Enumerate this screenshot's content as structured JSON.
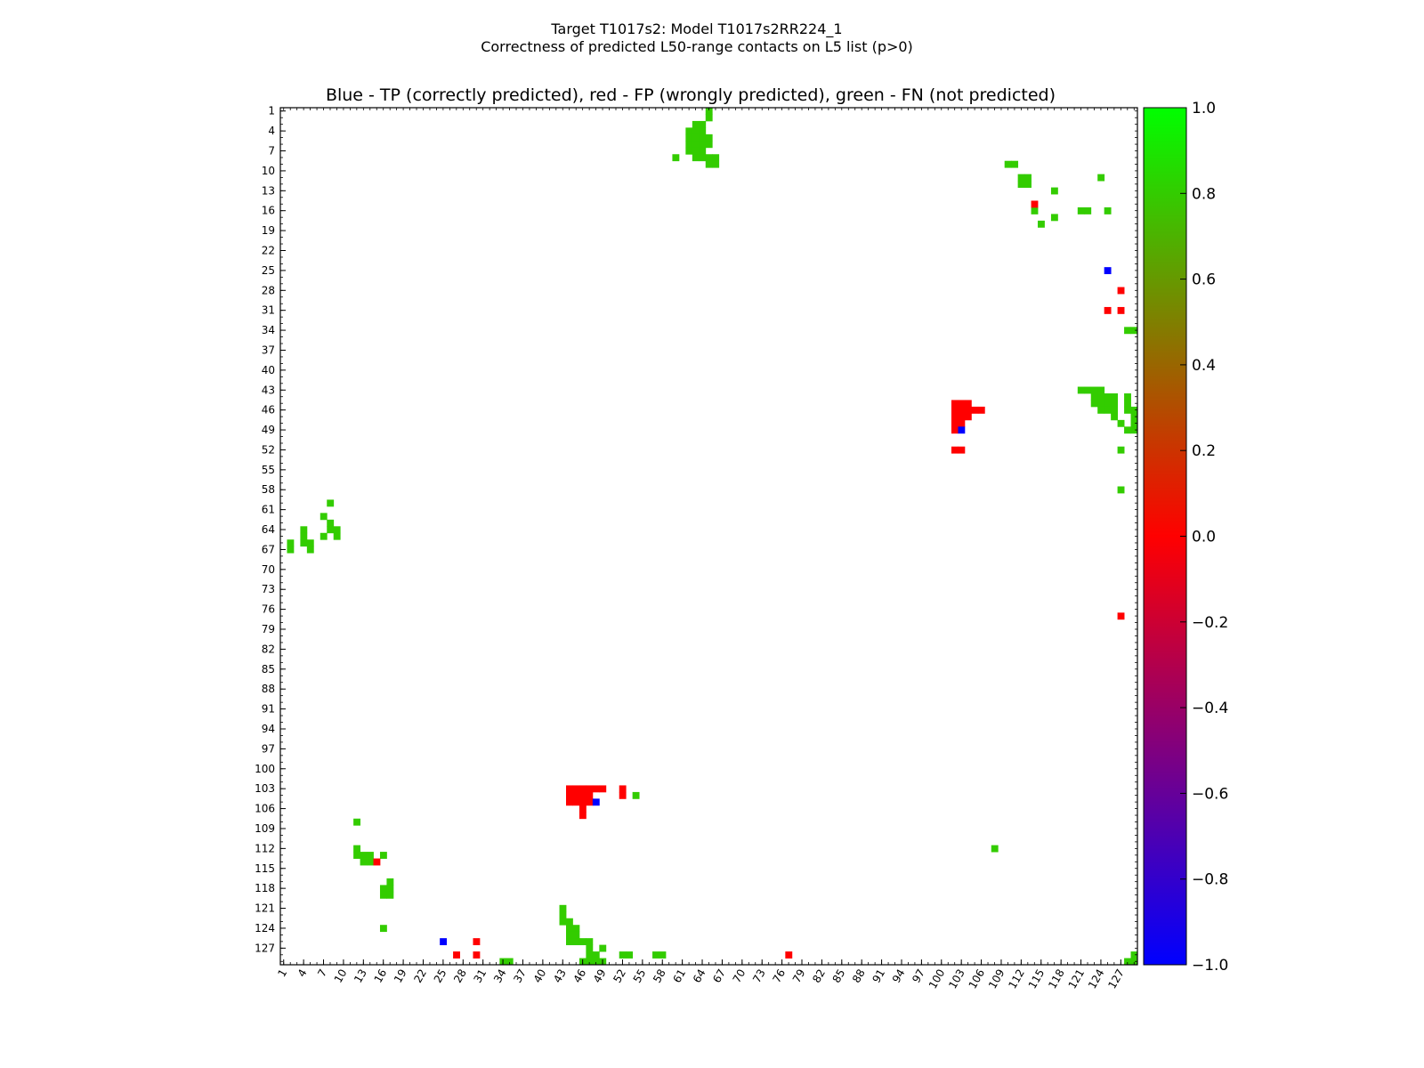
{
  "chart_data": {
    "type": "heatmap",
    "title_line1": "Target T1017s2: Model T1017s2RR224_1",
    "title_line2": "Correctness of predicted L50-range contacts on L5 list (p>0)",
    "subtitle": "Blue - TP (correctly predicted), red - FP (wrongly predicted), green - FN (not predicted)",
    "xlabel": "",
    "ylabel": "",
    "axis_range": [
      1,
      129
    ],
    "x_ticks": [
      "1",
      "4",
      "7",
      "10",
      "13",
      "16",
      "19",
      "22",
      "25",
      "28",
      "31",
      "34",
      "37",
      "40",
      "43",
      "46",
      "49",
      "52",
      "55",
      "58",
      "61",
      "64",
      "67",
      "70",
      "73",
      "76",
      "79",
      "82",
      "85",
      "88",
      "91",
      "94",
      "97",
      "100",
      "103",
      "106",
      "109",
      "112",
      "115",
      "118",
      "121",
      "124",
      "127"
    ],
    "y_ticks": [
      "1",
      "4",
      "7",
      "10",
      "13",
      "16",
      "19",
      "22",
      "25",
      "28",
      "31",
      "34",
      "37",
      "40",
      "43",
      "46",
      "49",
      "52",
      "55",
      "58",
      "61",
      "64",
      "67",
      "70",
      "73",
      "76",
      "79",
      "82",
      "85",
      "88",
      "91",
      "94",
      "97",
      "100",
      "103",
      "106",
      "109",
      "112",
      "115",
      "118",
      "121",
      "124",
      "127"
    ],
    "colorbar": {
      "min": -1.0,
      "max": 1.0,
      "ticks": [
        "1.0",
        "0.8",
        "0.6",
        "0.4",
        "0.2",
        "0.0",
        "−0.2",
        "−0.4",
        "−0.6",
        "−0.8",
        "−1.0"
      ],
      "tick_values": [
        1.0,
        0.8,
        0.6,
        0.4,
        0.2,
        0.0,
        -0.2,
        -0.4,
        -0.6,
        -0.8,
        -1.0
      ],
      "colors": [
        "#0000ff",
        "#ff0000",
        "#00ff00"
      ]
    },
    "legend": {
      "TP": {
        "label": "TP (correctly predicted)",
        "value": -1.0,
        "color": "#0000ff"
      },
      "FP": {
        "label": "FP (wrongly predicted)",
        "value": 0.0,
        "color": "#ff0000"
      },
      "FN": {
        "label": "FN (not predicted)",
        "value": 0.8,
        "color": "#33cc00"
      }
    },
    "cell_colors": {
      "TP": "#0000ff",
      "FP": "#ff0000",
      "FN": "#33cc00"
    },
    "cells": {
      "TP": [
        [
          25,
          126
        ],
        [
          48,
          105
        ],
        [
          103,
          49
        ],
        [
          125,
          25
        ]
      ],
      "FP": [
        [
          27,
          128
        ],
        [
          30,
          126
        ],
        [
          30,
          128
        ],
        [
          46,
          103
        ],
        [
          47,
          103
        ],
        [
          48,
          103
        ],
        [
          49,
          103
        ],
        [
          44,
          103
        ],
        [
          44,
          104
        ],
        [
          44,
          105
        ],
        [
          45,
          103
        ],
        [
          45,
          104
        ],
        [
          45,
          105
        ],
        [
          46,
          104
        ],
        [
          46,
          105
        ],
        [
          47,
          104
        ],
        [
          47,
          105
        ],
        [
          46,
          106
        ],
        [
          46,
          107
        ],
        [
          52,
          103
        ],
        [
          52,
          104
        ],
        [
          77,
          128
        ],
        [
          15,
          114
        ],
        [
          102,
          45
        ],
        [
          102,
          46
        ],
        [
          102,
          47
        ],
        [
          102,
          48
        ],
        [
          102,
          49
        ],
        [
          102,
          52
        ],
        [
          103,
          45
        ],
        [
          103,
          46
        ],
        [
          103,
          47
        ],
        [
          103,
          48
        ],
        [
          103,
          52
        ],
        [
          104,
          45
        ],
        [
          104,
          46
        ],
        [
          104,
          47
        ],
        [
          105,
          46
        ],
        [
          106,
          46
        ],
        [
          114,
          15
        ],
        [
          125,
          31
        ],
        [
          127,
          28
        ],
        [
          127,
          31
        ],
        [
          127,
          77
        ]
      ],
      "FN": [
        [
          2,
          66
        ],
        [
          2,
          67
        ],
        [
          4,
          64
        ],
        [
          4,
          65
        ],
        [
          4,
          66
        ],
        [
          5,
          66
        ],
        [
          5,
          67
        ],
        [
          7,
          62
        ],
        [
          7,
          65
        ],
        [
          8,
          60
        ],
        [
          8,
          63
        ],
        [
          8,
          64
        ],
        [
          9,
          64
        ],
        [
          9,
          65
        ],
        [
          12,
          108
        ],
        [
          12,
          112
        ],
        [
          12,
          113
        ],
        [
          13,
          113
        ],
        [
          13,
          114
        ],
        [
          14,
          113
        ],
        [
          14,
          114
        ],
        [
          16,
          113
        ],
        [
          16,
          118
        ],
        [
          16,
          119
        ],
        [
          16,
          124
        ],
        [
          17,
          117
        ],
        [
          17,
          118
        ],
        [
          17,
          119
        ],
        [
          34,
          129
        ],
        [
          43,
          121
        ],
        [
          43,
          122
        ],
        [
          43,
          123
        ],
        [
          44,
          123
        ],
        [
          44,
          124
        ],
        [
          44,
          125
        ],
        [
          44,
          126
        ],
        [
          45,
          124
        ],
        [
          45,
          125
        ],
        [
          45,
          126
        ],
        [
          46,
          126
        ],
        [
          46,
          129
        ],
        [
          47,
          126
        ],
        [
          47,
          127
        ],
        [
          47,
          128
        ],
        [
          47,
          129
        ],
        [
          48,
          128
        ],
        [
          48,
          129
        ],
        [
          49,
          127
        ],
        [
          49,
          129
        ],
        [
          52,
          128
        ],
        [
          54,
          104
        ],
        [
          57,
          128
        ],
        [
          60,
          8
        ],
        [
          62,
          4
        ],
        [
          62,
          5
        ],
        [
          62,
          6
        ],
        [
          62,
          7
        ],
        [
          63,
          3
        ],
        [
          63,
          4
        ],
        [
          63,
          5
        ],
        [
          63,
          6
        ],
        [
          63,
          7
        ],
        [
          63,
          8
        ],
        [
          64,
          3
        ],
        [
          64,
          4
        ],
        [
          64,
          5
        ],
        [
          64,
          6
        ],
        [
          64,
          7
        ],
        [
          64,
          8
        ],
        [
          65,
          1
        ],
        [
          65,
          2
        ],
        [
          65,
          5
        ],
        [
          65,
          6
        ],
        [
          65,
          8
        ],
        [
          65,
          9
        ],
        [
          66,
          8
        ],
        [
          66,
          9
        ],
        [
          108,
          112
        ],
        [
          110,
          9
        ],
        [
          111,
          9
        ],
        [
          112,
          11
        ],
        [
          112,
          12
        ],
        [
          113,
          11
        ],
        [
          113,
          12
        ],
        [
          114,
          16
        ],
        [
          115,
          18
        ],
        [
          117,
          13
        ],
        [
          117,
          17
        ],
        [
          121,
          16
        ],
        [
          122,
          16
        ],
        [
          124,
          11
        ],
        [
          125,
          16
        ],
        [
          121,
          43
        ],
        [
          122,
          43
        ],
        [
          123,
          43
        ],
        [
          123,
          44
        ],
        [
          123,
          45
        ],
        [
          124,
          43
        ],
        [
          124,
          44
        ],
        [
          124,
          45
        ],
        [
          124,
          46
        ],
        [
          125,
          44
        ],
        [
          125,
          45
        ],
        [
          125,
          46
        ],
        [
          126,
          44
        ],
        [
          126,
          45
        ],
        [
          126,
          46
        ],
        [
          126,
          47
        ],
        [
          127,
          48
        ],
        [
          128,
          44
        ],
        [
          128,
          45
        ],
        [
          128,
          46
        ],
        [
          128,
          49
        ],
        [
          129,
          46
        ],
        [
          129,
          47
        ],
        [
          129,
          48
        ],
        [
          129,
          49
        ],
        [
          127,
          58
        ],
        [
          127,
          52
        ],
        [
          128,
          34
        ],
        [
          129,
          34
        ],
        [
          128,
          129
        ],
        [
          129,
          129
        ],
        [
          129,
          128
        ],
        [
          35,
          129
        ],
        [
          58,
          128
        ],
        [
          53,
          128
        ]
      ]
    }
  }
}
